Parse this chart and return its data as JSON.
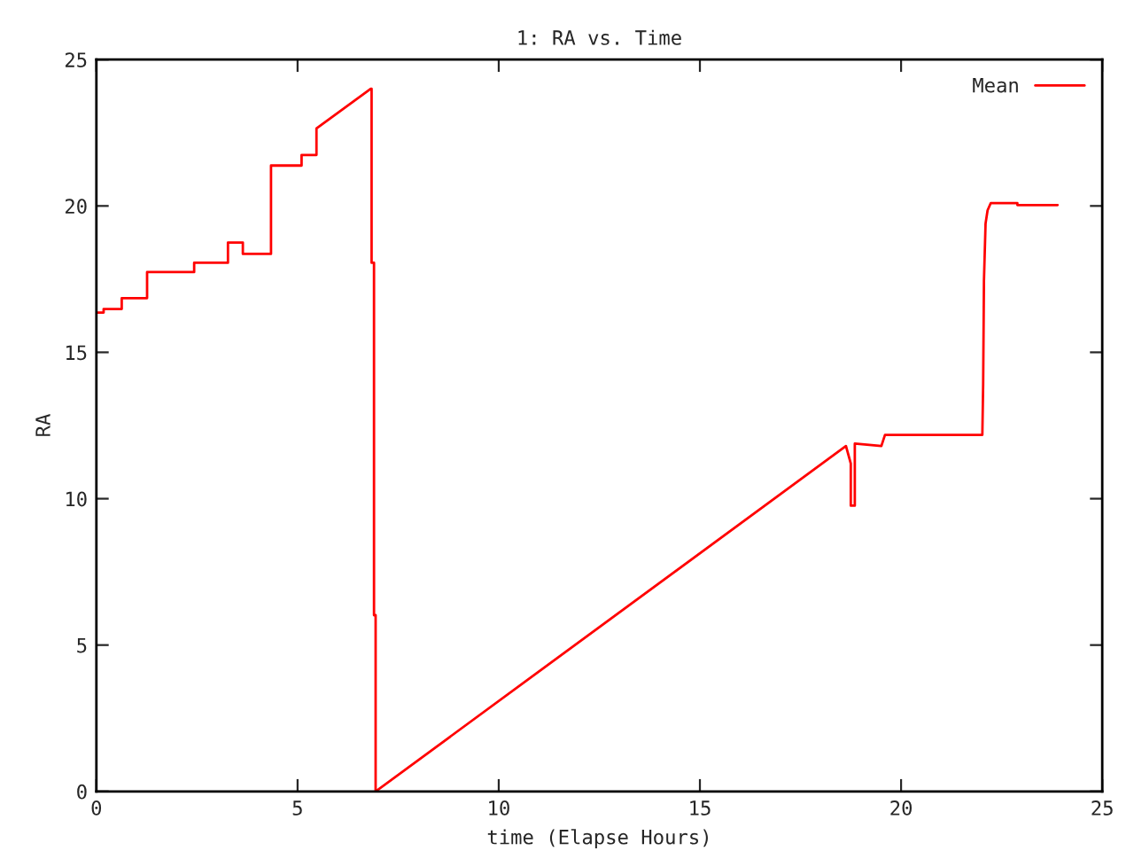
{
  "chart_data": {
    "type": "line",
    "title": "1: RA vs. Time",
    "xlabel": "time (Elapse Hours)",
    "ylabel": "RA",
    "xlim": [
      0,
      25
    ],
    "xticks": [
      0,
      5,
      10,
      15,
      20,
      25
    ],
    "ylim": [
      0,
      25
    ],
    "yticks": [
      0,
      5,
      10,
      15,
      20,
      25
    ],
    "grid": false,
    "legend": "top right",
    "marker": "none",
    "line_style": "solid",
    "series": [
      {
        "name": "Mean",
        "color": "#ff0000",
        "x": [
          0,
          0.18,
          0.18,
          0.63,
          0.63,
          1.26,
          1.26,
          2.43,
          2.43,
          3.27,
          3.27,
          3.64,
          3.64,
          4.34,
          4.34,
          5.1,
          5.1,
          5.47,
          5.47,
          6.82,
          6.84,
          6.84,
          6.9,
          6.9,
          6.94,
          6.94,
          18.63,
          18.75,
          18.75,
          18.85,
          18.85,
          19.51,
          19.6,
          22.02,
          22.04,
          22.06,
          22.1,
          22.15,
          22.23,
          22.89,
          22.89,
          23.89
        ],
        "values": [
          16.36,
          16.36,
          16.48,
          16.48,
          16.85,
          16.85,
          17.74,
          17.74,
          18.06,
          18.06,
          18.75,
          18.75,
          18.36,
          18.36,
          21.38,
          21.38,
          21.74,
          21.74,
          22.65,
          24.0,
          24.0,
          18.06,
          18.06,
          6.02,
          6.02,
          0,
          11.8,
          11.2,
          9.76,
          9.76,
          11.88,
          11.8,
          12.18,
          12.18,
          13.9,
          17.45,
          19.4,
          19.85,
          20.1,
          20.1,
          20.03,
          20.03
        ]
      }
    ]
  }
}
